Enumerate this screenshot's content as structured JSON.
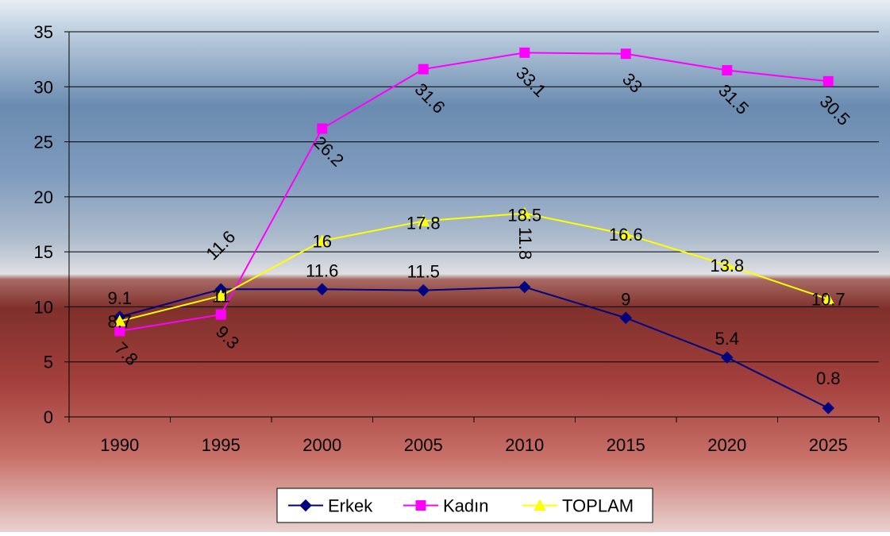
{
  "chart_data": {
    "type": "line",
    "categories": [
      "1990",
      "1995",
      "2000",
      "2005",
      "2010",
      "2015",
      "2020",
      "2025"
    ],
    "ylim": [
      0,
      35
    ],
    "yticks": [
      "0",
      "5",
      "10",
      "15",
      "20",
      "25",
      "30",
      "35"
    ],
    "grid": true,
    "legend_placement": "bottom",
    "series": [
      {
        "name": "Erkek",
        "color": "#000080",
        "marker": "diamond",
        "values": [
          9.1,
          11.6,
          11.6,
          11.5,
          11.8,
          9,
          5.4,
          0.8
        ],
        "labels": [
          "9.1",
          "11.6",
          "11.6",
          "11.5",
          "11.8",
          "9",
          "5.4",
          "0.8"
        ]
      },
      {
        "name": "Kadın",
        "color": "#ff00ff",
        "marker": "square",
        "values": [
          7.8,
          9.3,
          26.2,
          31.6,
          33.1,
          33,
          31.5,
          30.5
        ],
        "labels": [
          "7.8",
          "9.3",
          "26.2",
          "31.6",
          "33.1",
          "33",
          "31.5",
          "30.5"
        ]
      },
      {
        "name": "TOPLAM",
        "color": "#ffff00",
        "marker": "triangle",
        "values": [
          8.7,
          11,
          16,
          17.8,
          18.5,
          16.6,
          13.8,
          10.7
        ],
        "labels": [
          "8.7",
          "11",
          "16",
          "17.8",
          "18.5",
          "16.6",
          "13.8",
          "10.7"
        ]
      }
    ]
  }
}
